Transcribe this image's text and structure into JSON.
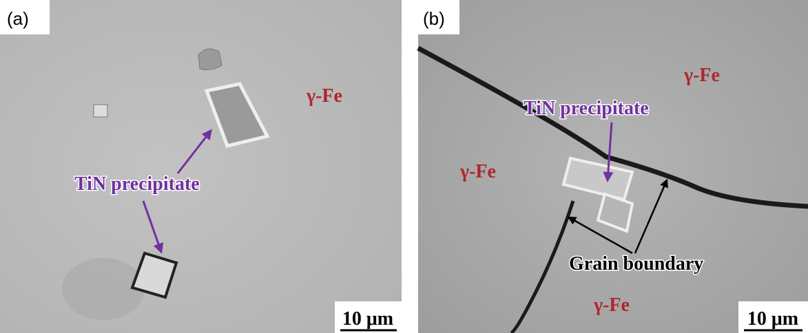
{
  "panels": [
    {
      "label": "(a)",
      "annotations": [
        "γ-Fe",
        "TiN precipitate"
      ],
      "scale_bar": "10 μm"
    },
    {
      "label": "(b)",
      "annotations": [
        "γ-Fe",
        "γ-Fe",
        "γ-Fe",
        "TiN precipitate",
        "Grain boundary"
      ],
      "scale_bar": "10 μm"
    }
  ]
}
